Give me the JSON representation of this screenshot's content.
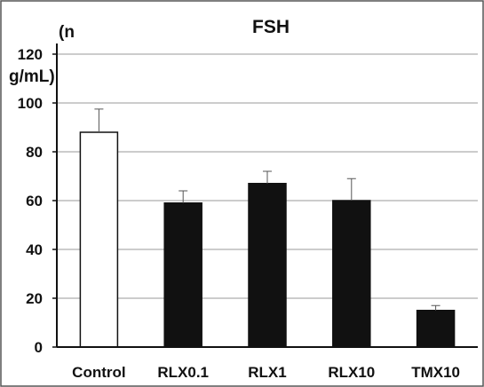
{
  "chart_data": {
    "type": "bar",
    "title": "FSH",
    "ylabel_lines": [
      "(n",
      "g/mL)"
    ],
    "categories": [
      "Control",
      "RLX0.1",
      "RLX1",
      "RLX10",
      "TMX10"
    ],
    "values": [
      88,
      59,
      67,
      60,
      15
    ],
    "errors": [
      9.5,
      5,
      5,
      9,
      2
    ],
    "bar_colors": [
      "#ffffff",
      "#111111",
      "#111111",
      "#111111",
      "#111111"
    ],
    "y_ticks": [
      0,
      20,
      40,
      60,
      80,
      100,
      120
    ],
    "ylim": [
      0,
      120
    ],
    "grid": true
  }
}
